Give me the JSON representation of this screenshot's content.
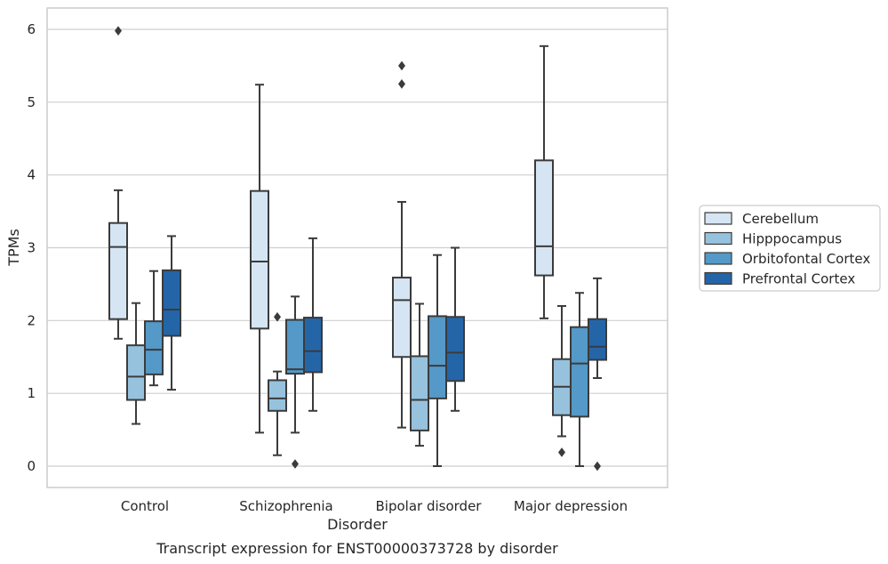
{
  "chart_data": {
    "type": "box",
    "xlabel": "Disorder",
    "ylabel": "TPMs",
    "caption": "Transcript expression for ENST00000373728 by disorder",
    "ylim": [
      -0.3,
      6.3
    ],
    "yticks": [
      0,
      1,
      2,
      3,
      4,
      5,
      6
    ],
    "ytick_labels": [
      "0",
      "1",
      "2",
      "3",
      "4",
      "5",
      "6"
    ],
    "grid": "horizontal",
    "legend_position": "right",
    "categories": [
      "Control",
      "Schizophrenia",
      "Bipolar disorder",
      "Major depression"
    ],
    "series": [
      {
        "name": "Cerebellum",
        "color": "#d6e5f3",
        "boxes": [
          {
            "whisker_low": 1.75,
            "q1": 2.02,
            "median": 3.01,
            "q3": 3.34,
            "whisker_high": 3.79,
            "outliers": [
              5.98
            ]
          },
          {
            "whisker_low": 0.46,
            "q1": 1.89,
            "median": 2.81,
            "q3": 3.78,
            "whisker_high": 5.24,
            "outliers": []
          },
          {
            "whisker_low": 0.53,
            "q1": 1.5,
            "median": 2.28,
            "q3": 2.59,
            "whisker_high": 3.63,
            "outliers": [
              5.5,
              5.25
            ]
          },
          {
            "whisker_low": 2.03,
            "q1": 2.62,
            "median": 3.02,
            "q3": 4.2,
            "whisker_high": 5.77,
            "outliers": []
          }
        ]
      },
      {
        "name": "Hipppocampus",
        "color": "#97c2dd",
        "boxes": [
          {
            "whisker_low": 0.58,
            "q1": 0.91,
            "median": 1.23,
            "q3": 1.66,
            "whisker_high": 2.24,
            "outliers": []
          },
          {
            "whisker_low": 0.15,
            "q1": 0.76,
            "median": 0.93,
            "q3": 1.18,
            "whisker_high": 1.3,
            "outliers": [
              2.05
            ]
          },
          {
            "whisker_low": 0.28,
            "q1": 0.49,
            "median": 0.91,
            "q3": 1.51,
            "whisker_high": 2.23,
            "outliers": []
          },
          {
            "whisker_low": 0.41,
            "q1": 0.7,
            "median": 1.09,
            "q3": 1.47,
            "whisker_high": 2.2,
            "outliers": [
              0.19
            ]
          }
        ]
      },
      {
        "name": "Orbitofontal Cortex",
        "color": "#5499c8",
        "boxes": [
          {
            "whisker_low": 1.11,
            "q1": 1.26,
            "median": 1.6,
            "q3": 1.99,
            "whisker_high": 2.68,
            "outliers": []
          },
          {
            "whisker_low": 0.46,
            "q1": 1.27,
            "median": 1.33,
            "q3": 2.01,
            "whisker_high": 2.33,
            "outliers": [
              0.03
            ]
          },
          {
            "whisker_low": 0.0,
            "q1": 0.93,
            "median": 1.38,
            "q3": 2.06,
            "whisker_high": 2.9,
            "outliers": []
          },
          {
            "whisker_low": 0.0,
            "q1": 0.68,
            "median": 1.41,
            "q3": 1.91,
            "whisker_high": 2.38,
            "outliers": []
          }
        ]
      },
      {
        "name": "Prefrontal Cortex",
        "color": "#2465a8",
        "boxes": [
          {
            "whisker_low": 1.05,
            "q1": 1.79,
            "median": 2.15,
            "q3": 2.69,
            "whisker_high": 3.16,
            "outliers": []
          },
          {
            "whisker_low": 0.76,
            "q1": 1.29,
            "median": 1.58,
            "q3": 2.04,
            "whisker_high": 3.13,
            "outliers": []
          },
          {
            "whisker_low": 0.76,
            "q1": 1.17,
            "median": 1.56,
            "q3": 2.05,
            "whisker_high": 3.0,
            "outliers": []
          },
          {
            "whisker_low": 1.21,
            "q1": 1.46,
            "median": 1.64,
            "q3": 2.02,
            "whisker_high": 2.58,
            "outliers": [
              0.0
            ]
          }
        ]
      }
    ]
  }
}
